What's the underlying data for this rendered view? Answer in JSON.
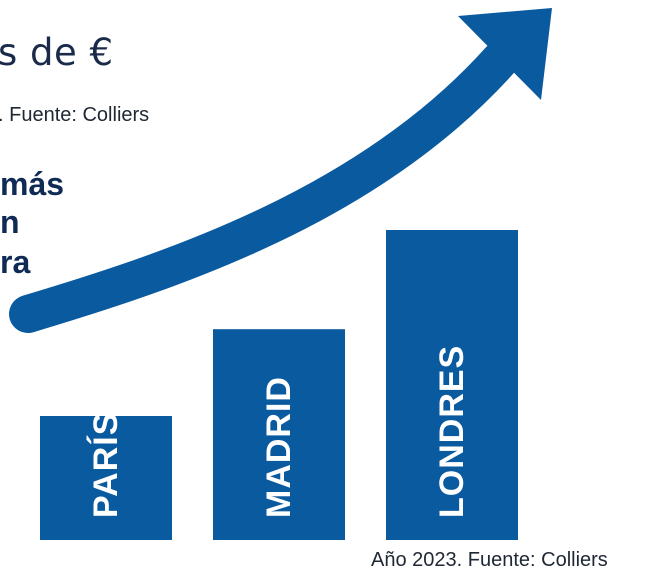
{
  "header": {
    "title_fragment": "s de €",
    "subtitle_fragment": ". Fuente: Colliers",
    "bold_lines": [
      "más",
      "n",
      "ra"
    ]
  },
  "source": "Año 2023. Fuente: Colliers",
  "colors": {
    "bar": "#0a5aa0",
    "arrow": "#0a5aa0"
  },
  "chart_data": {
    "type": "bar",
    "orientation": "vertical",
    "category_labels_position": "inside-bar-rotated",
    "categories": [
      "PARÍS",
      "MADRID",
      "LONDRES"
    ],
    "values": [
      1,
      1.7,
      2.5
    ],
    "value_axis_visible": false,
    "decorations": [
      "upward-trend-arrow"
    ]
  }
}
